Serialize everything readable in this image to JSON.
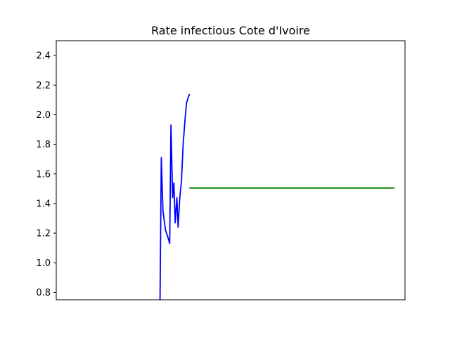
{
  "chart_data": {
    "type": "line",
    "title": "Rate infectious Cote d'Ivoire",
    "xlabel": "",
    "ylabel": "",
    "xlim": [
      -3,
      80
    ],
    "ylim": [
      0.75,
      2.5
    ],
    "yticks": [
      0.8,
      1.0,
      1.2,
      1.4,
      1.6,
      1.8,
      2.0,
      2.2,
      2.4
    ],
    "grid": false,
    "legend": "none",
    "series": [
      {
        "color": "#0000ff",
        "x": [
          21.7,
          22.0,
          22.4,
          23.0,
          23.6,
          24.0,
          24.3,
          24.7,
          25.0,
          25.3,
          25.7,
          26.0,
          26.4,
          26.8,
          27.2,
          27.6,
          28.0,
          28.7
        ],
        "y": [
          0.75,
          1.71,
          1.35,
          1.22,
          1.17,
          1.13,
          1.93,
          1.44,
          1.54,
          1.27,
          1.44,
          1.24,
          1.44,
          1.55,
          1.8,
          1.95,
          2.08,
          2.14
        ]
      },
      {
        "color": "#008000",
        "x": [
          28.7,
          77.5
        ],
        "y": [
          1.505,
          1.505
        ]
      }
    ]
  }
}
